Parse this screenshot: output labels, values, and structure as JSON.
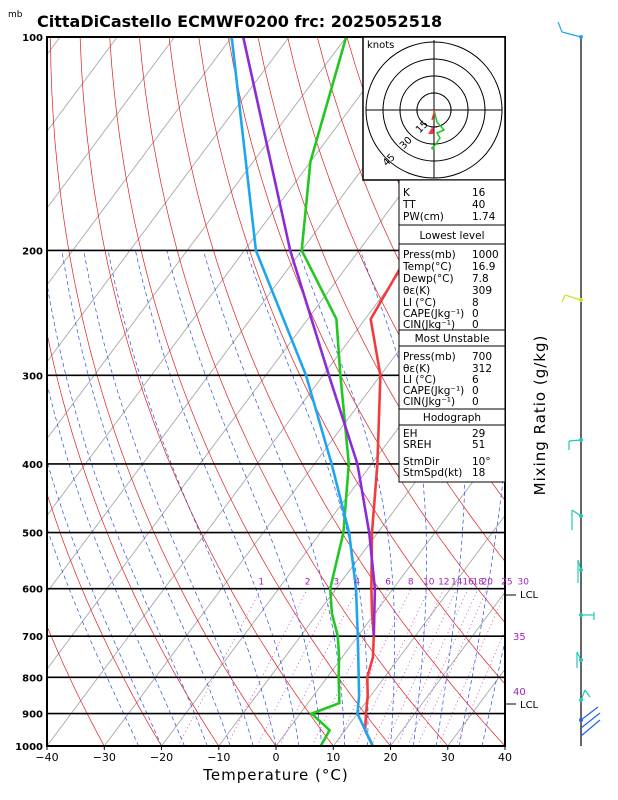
{
  "header": {
    "unit": "mb",
    "title": "CittaDiCastello ECMWF0200 frc: 2025052518"
  },
  "chart_data": {
    "type": "line",
    "subtype": "skew-t log-p sounding",
    "xlabel": "Temperature (°C)",
    "ylabel": "Mixing Ratio (g/kg)",
    "x_ticks": [
      -40,
      -30,
      -20,
      -10,
      0,
      10,
      20,
      30,
      40
    ],
    "x_tick_labels": [
      "−40",
      "−30",
      "−20",
      "−10",
      "0",
      "10",
      "20",
      "30",
      "40"
    ],
    "p_ticks": [
      100,
      200,
      300,
      400,
      500,
      600,
      700,
      800,
      900,
      1000
    ],
    "p_tick_labels": [
      "100",
      "200",
      "300",
      "400",
      "500",
      "600",
      "700",
      "800",
      "900",
      "1000"
    ],
    "xlim": [
      -40,
      40
    ],
    "plim": [
      1000,
      100
    ],
    "mixing_ratio_labels": [
      "1",
      "2",
      "3",
      "4",
      "6",
      "8",
      "10",
      "12",
      "14",
      "16",
      "18",
      "20",
      "25",
      "30"
    ],
    "series": [
      {
        "role": "temperature",
        "color": "#f03c3c",
        "points": [
          [
            1000,
            16.9
          ],
          [
            950,
            13.5
          ],
          [
            900,
            11.5
          ],
          [
            850,
            9.5
          ],
          [
            800,
            7
          ],
          [
            750,
            5.4
          ],
          [
            700,
            2.8
          ],
          [
            650,
            -0.5
          ],
          [
            600,
            -3.8
          ],
          [
            500,
            -11
          ],
          [
            400,
            -19
          ],
          [
            300,
            -30
          ],
          [
            250,
            -39
          ],
          [
            200,
            -41
          ],
          [
            150,
            -43
          ],
          [
            100,
            -45
          ]
        ]
      },
      {
        "role": "dewpoint",
        "color": "#21c821",
        "points": [
          [
            1000,
            7.8
          ],
          [
            950,
            7.3
          ],
          [
            900,
            2
          ],
          [
            870,
            5.5
          ],
          [
            800,
            2
          ],
          [
            750,
            -0.5
          ],
          [
            700,
            -3.5
          ],
          [
            650,
            -7.5
          ],
          [
            600,
            -11
          ],
          [
            500,
            -16
          ],
          [
            400,
            -24
          ],
          [
            300,
            -37
          ],
          [
            250,
            -45
          ],
          [
            200,
            -60
          ],
          [
            150,
            -70
          ],
          [
            100,
            -80
          ]
        ]
      },
      {
        "role": "parcel_surface",
        "color": "#1ea5f0",
        "points": [
          [
            1000,
            16.9
          ],
          [
            900,
            10
          ],
          [
            850,
            8
          ],
          [
            800,
            5.5
          ],
          [
            700,
            0
          ],
          [
            600,
            -6.5
          ],
          [
            500,
            -15
          ],
          [
            400,
            -27
          ],
          [
            300,
            -43
          ],
          [
            200,
            -68
          ],
          [
            100,
            -100
          ]
        ]
      },
      {
        "role": "parcel_most_unstable",
        "color": "#8c2bd7",
        "points": [
          [
            700,
            2.8
          ],
          [
            600,
            -3.2
          ],
          [
            500,
            -11.5
          ],
          [
            400,
            -22.5
          ],
          [
            300,
            -39
          ],
          [
            200,
            -62
          ],
          [
            100,
            -98
          ]
        ]
      }
    ],
    "right_labels": [
      "LCL",
      "35",
      "40",
      "LCL"
    ],
    "hodograph": {
      "unit_label": "knots",
      "ring_labels": [
        "15",
        "30",
        "45"
      ]
    },
    "indices": [
      [
        "K",
        "16"
      ],
      [
        "TT",
        "40"
      ],
      [
        "PW(cm)",
        "1.74"
      ]
    ],
    "lowest_level": {
      "title": "Lowest level",
      "rows": [
        [
          "Press(mb)",
          "1000"
        ],
        [
          "Temp(°C)",
          "16.9"
        ],
        [
          "Dewp(°C)",
          "7.8"
        ],
        [
          "θε(K)",
          "309"
        ],
        [
          "LI (°C)",
          "8"
        ],
        [
          "CAPE(Jkg⁻¹)",
          "0"
        ],
        [
          "CIN(Jkg⁻¹)",
          "0"
        ]
      ]
    },
    "most_unstable": {
      "title": "Most Unstable",
      "rows": [
        [
          "Press(mb)",
          "700"
        ],
        [
          "θε(K)",
          "312"
        ],
        [
          "LI (°C)",
          "6"
        ],
        [
          "CAPE(Jkg⁻¹)",
          "0"
        ],
        [
          "CIN(Jkg⁻¹)",
          "0"
        ]
      ]
    },
    "hodograph_table": {
      "title": "Hodograph",
      "rows": [
        [
          "EH",
          "29"
        ],
        [
          "SREH",
          "51"
        ],
        [
          "StmDir",
          "10°"
        ],
        [
          "StmSpd(kt)",
          "18"
        ]
      ]
    }
  }
}
